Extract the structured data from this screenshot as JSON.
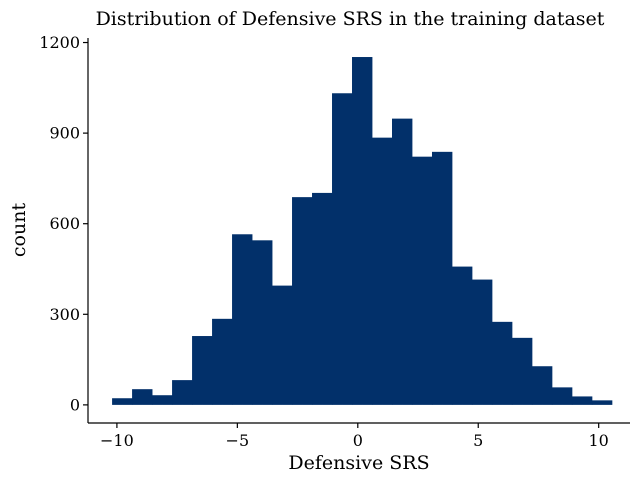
{
  "chart_data": {
    "type": "bar",
    "title": "Distribution of Defensive SRS in the training dataset",
    "xlabel": "Defensive SRS",
    "ylabel": "count",
    "bar_color": "#02306a",
    "xlim": [
      -11.2,
      11.3
    ],
    "ylim": [
      -60,
      1215
    ],
    "x_ticks": [
      -10,
      -5,
      0,
      5,
      10
    ],
    "x_tick_labels": [
      "−10",
      "−5",
      "0",
      "5",
      "10"
    ],
    "y_ticks": [
      0,
      300,
      600,
      900,
      1200
    ],
    "y_tick_labels": [
      "0",
      "300",
      "600",
      "900",
      "1200"
    ],
    "grid": false,
    "bins": [
      {
        "x0": -10.2,
        "x1": -9.37,
        "value": 22
      },
      {
        "x0": -9.37,
        "x1": -8.54,
        "value": 52
      },
      {
        "x0": -8.54,
        "x1": -7.71,
        "value": 32
      },
      {
        "x0": -7.71,
        "x1": -6.88,
        "value": 82
      },
      {
        "x0": -6.88,
        "x1": -6.05,
        "value": 228
      },
      {
        "x0": -6.05,
        "x1": -5.22,
        "value": 285
      },
      {
        "x0": -5.22,
        "x1": -4.39,
        "value": 565
      },
      {
        "x0": -4.39,
        "x1": -3.56,
        "value": 545
      },
      {
        "x0": -3.56,
        "x1": -2.73,
        "value": 395
      },
      {
        "x0": -2.73,
        "x1": -1.9,
        "value": 688
      },
      {
        "x0": -1.9,
        "x1": -1.07,
        "value": 702
      },
      {
        "x0": -1.07,
        "x1": -0.24,
        "value": 1032
      },
      {
        "x0": -0.24,
        "x1": 0.59,
        "value": 1152
      },
      {
        "x0": 0.59,
        "x1": 1.42,
        "value": 885
      },
      {
        "x0": 1.42,
        "x1": 2.25,
        "value": 948
      },
      {
        "x0": 2.25,
        "x1": 3.08,
        "value": 822
      },
      {
        "x0": 3.08,
        "x1": 3.91,
        "value": 838
      },
      {
        "x0": 3.91,
        "x1": 4.74,
        "value": 458
      },
      {
        "x0": 4.74,
        "x1": 5.57,
        "value": 415
      },
      {
        "x0": 5.57,
        "x1": 6.4,
        "value": 275
      },
      {
        "x0": 6.4,
        "x1": 7.23,
        "value": 222
      },
      {
        "x0": 7.23,
        "x1": 8.06,
        "value": 128
      },
      {
        "x0": 8.06,
        "x1": 8.89,
        "value": 58
      },
      {
        "x0": 8.89,
        "x1": 9.72,
        "value": 28
      },
      {
        "x0": 9.72,
        "x1": 10.55,
        "value": 15
      }
    ]
  }
}
